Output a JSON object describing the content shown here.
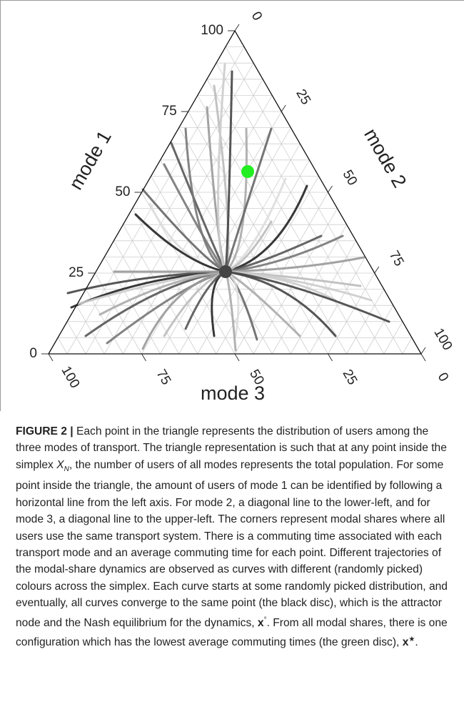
{
  "figure": {
    "axis_labels": {
      "mode1": "mode 1",
      "mode2": "mode 2",
      "mode3": "mode 3"
    },
    "mode1_ticks": [
      "0",
      "25",
      "50",
      "75",
      "100"
    ],
    "mode2_ticks": [
      "0",
      "25",
      "50",
      "75",
      "100"
    ],
    "mode3_ticks": [
      "100",
      "75",
      "50",
      "25",
      "0"
    ]
  },
  "caption": {
    "label": "FIGURE 2 |",
    "parts": [
      " Each point in the triangle represents the distribution of users among the three modes of transport. The triangle representation is such that at any point inside the simplex ",
      "X",
      "N",
      ", the number of users of all modes represents the total population. For some point inside the triangle, the amount of users of mode 1 can be identified by following a horizontal line from the left axis. For mode 2, a diagonal line to the lower-left, and for mode 3, a diagonal line to the upper-left. The corners represent modal shares where all users use the same transport system. There is a commuting time associated with each transport mode and an average commuting time for each point. Different trajectories of the modal-share dynamics are observed as curves with different (randomly picked) colours across the simplex. Each curve starts at some randomly picked distribution, and eventually, all curves converge to the same point (the black disc), which is the attractor node and the Nash equilibrium for the dynamics, ",
      "x",
      "°",
      ". From all modal shares, there is one configuration which has the lowest average commuting times (the green disc), ",
      "x",
      "★",
      "."
    ]
  }
}
